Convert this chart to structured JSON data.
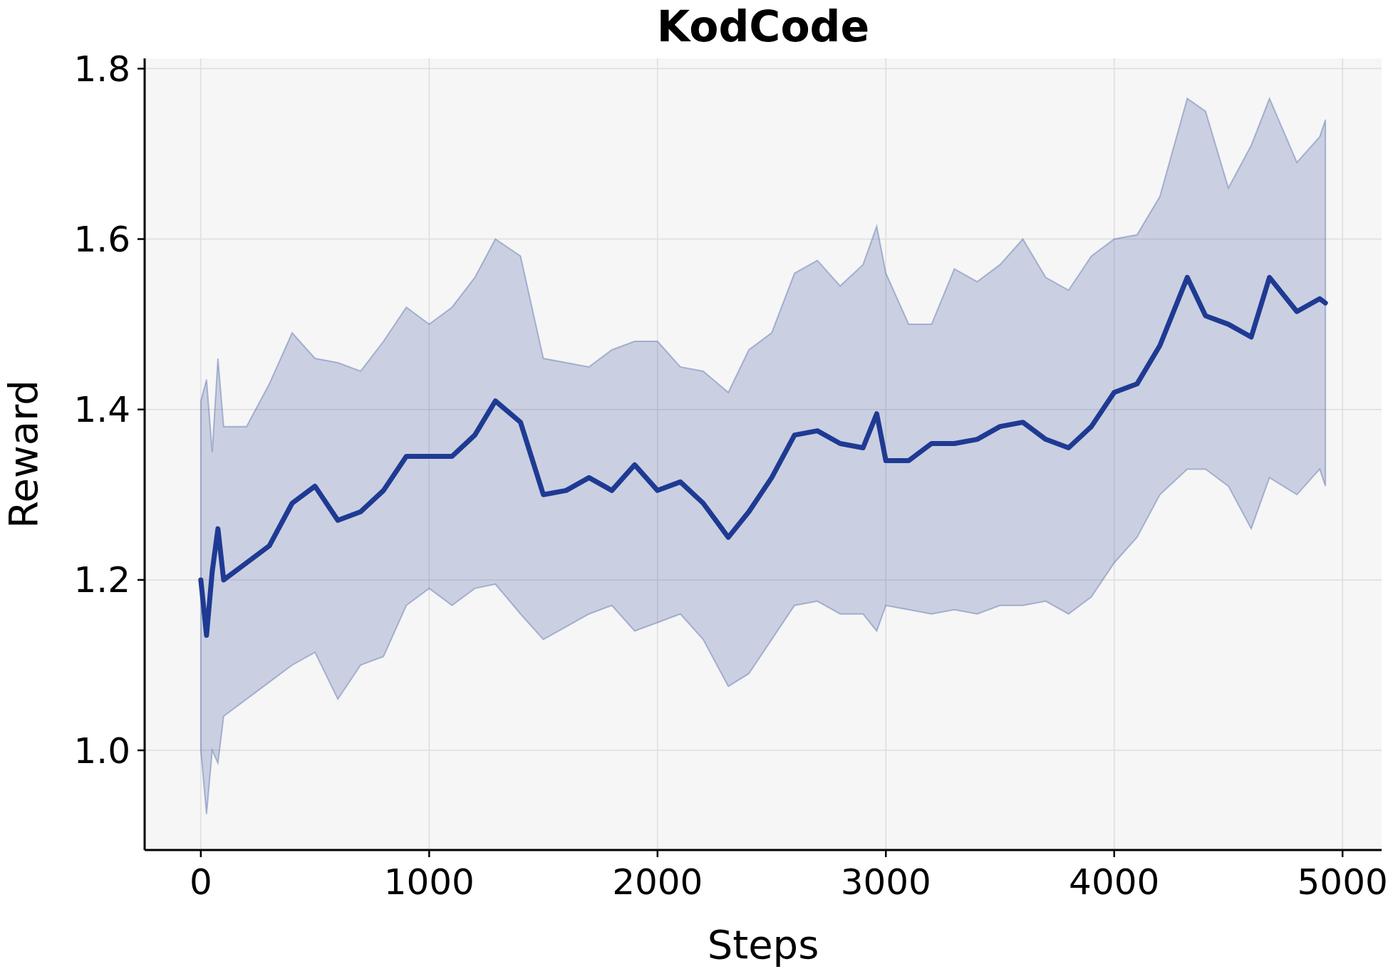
{
  "chart_data": {
    "type": "line",
    "title": "KodCode",
    "xlabel": "Steps",
    "ylabel": "Reward",
    "x": [
      0,
      25,
      50,
      75,
      100,
      200,
      300,
      400,
      500,
      600,
      700,
      800,
      900,
      1000,
      1100,
      1200,
      1290,
      1400,
      1500,
      1600,
      1700,
      1800,
      1900,
      2000,
      2100,
      2200,
      2310,
      2400,
      2500,
      2600,
      2700,
      2800,
      2900,
      2960,
      3000,
      3100,
      3200,
      3300,
      3400,
      3500,
      3600,
      3700,
      3800,
      3900,
      4000,
      4100,
      4200,
      4320,
      4400,
      4500,
      4600,
      4680,
      4800,
      4900,
      4925
    ],
    "series": [
      {
        "color": "#1f3a93",
        "values": [
          1.2,
          1.135,
          1.21,
          1.26,
          1.2,
          1.22,
          1.24,
          1.29,
          1.31,
          1.27,
          1.28,
          1.305,
          1.345,
          1.345,
          1.345,
          1.37,
          1.41,
          1.385,
          1.3,
          1.305,
          1.32,
          1.305,
          1.335,
          1.305,
          1.315,
          1.29,
          1.25,
          1.28,
          1.32,
          1.37,
          1.375,
          1.36,
          1.355,
          1.395,
          1.34,
          1.34,
          1.36,
          1.36,
          1.365,
          1.38,
          1.385,
          1.365,
          1.355,
          1.38,
          1.42,
          1.43,
          1.475,
          1.555,
          1.51,
          1.5,
          1.485,
          1.555,
          1.515,
          1.53,
          1.525
        ],
        "upper": [
          1.41,
          1.435,
          1.35,
          1.46,
          1.38,
          1.38,
          1.43,
          1.49,
          1.46,
          1.455,
          1.445,
          1.48,
          1.52,
          1.5,
          1.52,
          1.555,
          1.6,
          1.58,
          1.46,
          1.455,
          1.45,
          1.47,
          1.48,
          1.48,
          1.45,
          1.445,
          1.42,
          1.47,
          1.49,
          1.56,
          1.575,
          1.545,
          1.57,
          1.615,
          1.56,
          1.5,
          1.5,
          1.565,
          1.55,
          1.57,
          1.6,
          1.555,
          1.54,
          1.58,
          1.6,
          1.605,
          1.65,
          1.765,
          1.75,
          1.66,
          1.71,
          1.765,
          1.69,
          1.72,
          1.74
        ],
        "lower": [
          1.0,
          0.925,
          1.0,
          0.985,
          1.04,
          1.06,
          1.08,
          1.1,
          1.115,
          1.06,
          1.1,
          1.11,
          1.17,
          1.19,
          1.17,
          1.19,
          1.195,
          1.16,
          1.13,
          1.145,
          1.16,
          1.17,
          1.14,
          1.15,
          1.16,
          1.13,
          1.075,
          1.09,
          1.13,
          1.17,
          1.175,
          1.16,
          1.16,
          1.14,
          1.17,
          1.165,
          1.16,
          1.165,
          1.16,
          1.17,
          1.17,
          1.175,
          1.16,
          1.18,
          1.22,
          1.25,
          1.3,
          1.33,
          1.33,
          1.31,
          1.26,
          1.32,
          1.3,
          1.33,
          1.31
        ]
      }
    ],
    "xlim": [
      -246,
      5171
    ],
    "ylim": [
      0.883,
      1.812
    ],
    "xticks": [
      0,
      1000,
      2000,
      3000,
      4000,
      5000
    ],
    "yticks": [
      {
        "value": 1.0,
        "label": "1.0"
      },
      {
        "value": 1.2,
        "label": "1.2"
      },
      {
        "value": 1.4,
        "label": "1.4"
      },
      {
        "value": 1.6,
        "label": "1.6"
      },
      {
        "value": 1.8,
        "label": "1.8"
      }
    ],
    "grid": true
  }
}
